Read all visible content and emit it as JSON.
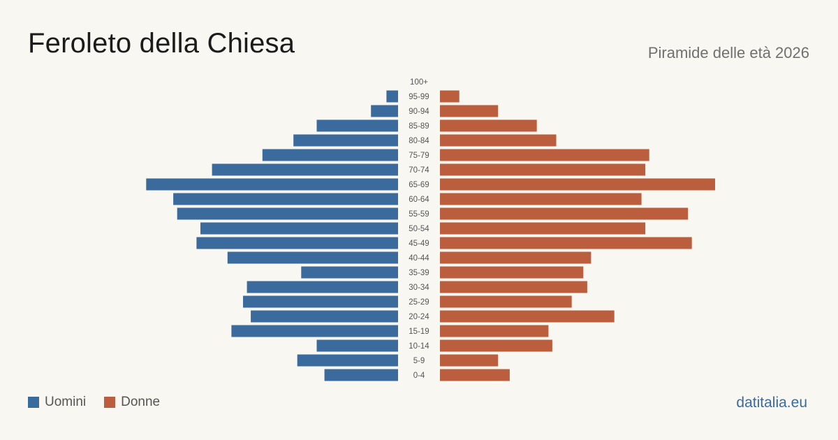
{
  "title": "Feroleto della Chiesa",
  "subtitle": "Piramide delle età 2026",
  "brand": "datitalia.eu",
  "colors": {
    "men": "#3b6b9c",
    "women": "#bb5e3d",
    "background": "#f9f7f2"
  },
  "legend": {
    "men_label": "Uomini",
    "women_label": "Donne"
  },
  "chart_data": {
    "type": "bar",
    "orientation": "horizontal-pyramid",
    "categories": [
      "100+",
      "95-99",
      "90-94",
      "85-89",
      "80-84",
      "75-79",
      "70-74",
      "65-69",
      "60-64",
      "55-59",
      "50-54",
      "45-49",
      "40-44",
      "35-39",
      "30-34",
      "25-29",
      "20-24",
      "15-19",
      "10-14",
      "5-9",
      "0-4"
    ],
    "series": [
      {
        "name": "Uomini",
        "values": [
          0,
          3,
          7,
          21,
          27,
          35,
          48,
          65,
          58,
          57,
          51,
          52,
          44,
          25,
          39,
          40,
          38,
          43,
          21,
          26,
          19
        ]
      },
      {
        "name": "Donne",
        "values": [
          0,
          5,
          15,
          25,
          30,
          54,
          53,
          71,
          52,
          64,
          53,
          65,
          39,
          37,
          38,
          34,
          45,
          28,
          29,
          15,
          18
        ]
      }
    ],
    "xlim": [
      0,
      71
    ],
    "grid": false,
    "legend_position": "bottom-left"
  }
}
